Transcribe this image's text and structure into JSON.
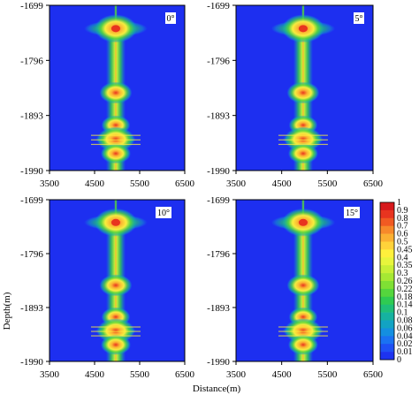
{
  "chart_data": {
    "type": "heatmap",
    "x_range": [
      3500,
      6500
    ],
    "y_range": [
      -1990,
      -1699
    ],
    "xticks": [
      "3500",
      "4500",
      "5500",
      "6500"
    ],
    "yticks": [
      "-1699",
      "-1796",
      "-1893",
      "-1990"
    ],
    "xlabel": "Distance(m)",
    "ylabel": "Depth(m)",
    "panels": [
      {
        "angle": "0°"
      },
      {
        "angle": "5°"
      },
      {
        "angle": "10°"
      },
      {
        "angle": "15°"
      }
    ],
    "colorbar": {
      "labels": [
        "1",
        "0.9",
        "0.8",
        "0.7",
        "0.6",
        "0.5",
        "0.45",
        "0.4",
        "0.35",
        "0.3",
        "0.26",
        "0.22",
        "0.18",
        "0.14",
        "0.1",
        "0.08",
        "0.06",
        "0.04",
        "0.02",
        "0.01",
        "0"
      ],
      "colors": [
        "#d7191c",
        "#e8341f",
        "#f15a22",
        "#f7892a",
        "#fbb032",
        "#ffd23a",
        "#fff03c",
        "#e8f53c",
        "#c8ef36",
        "#a6e833",
        "#7fe034",
        "#55d63d",
        "#2fcb52",
        "#1fbf78",
        "#16b2a0",
        "#12a3c3",
        "#148fe0",
        "#1a72f2",
        "#1e50f5",
        "#1d33f0"
      ]
    },
    "background_color": "#1d2ff0",
    "source_x": 4970,
    "layers": [
      {
        "depth": -1740,
        "intensity": 1.0,
        "half_width": 700
      },
      {
        "depth": -1853,
        "intensity": 0.6,
        "half_width": 250
      },
      {
        "depth": -1910,
        "intensity": 0.45,
        "half_width": 170
      },
      {
        "depth": -1935,
        "intensity": 0.8,
        "half_width": 450
      },
      {
        "depth": -1960,
        "intensity": 0.5,
        "half_width": 300
      }
    ]
  }
}
